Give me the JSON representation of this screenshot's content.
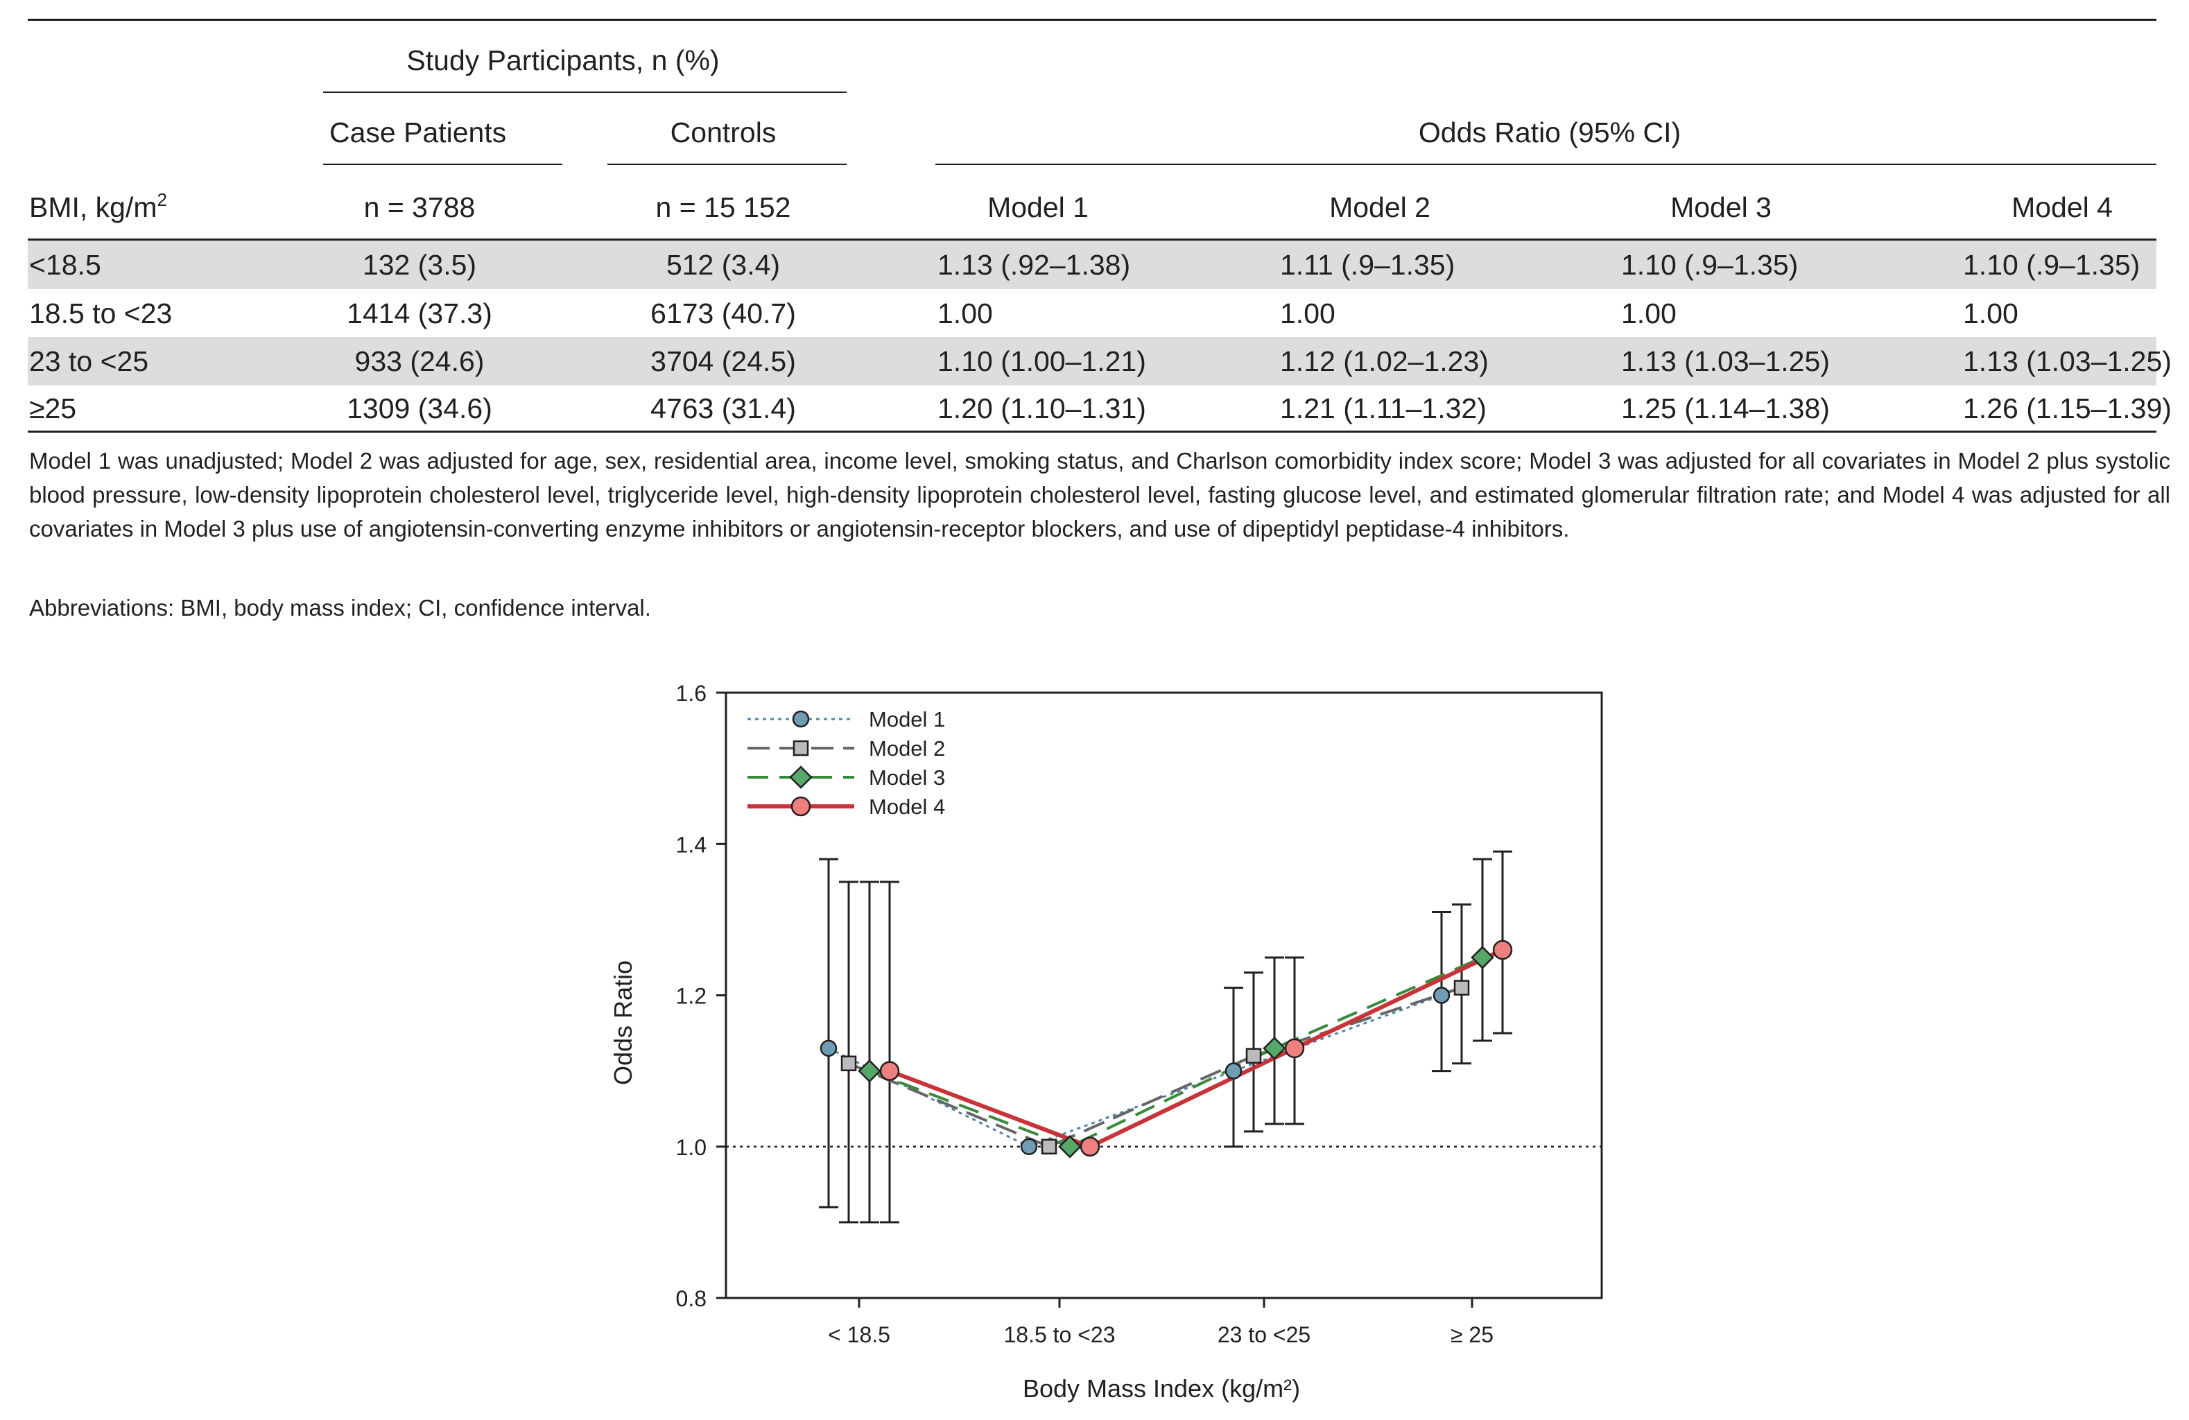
{
  "table": {
    "group_header": "Study Participants, n (%)",
    "or_header": "Odds Ratio (95% CI)",
    "col_case": "Case Patients",
    "col_controls": "Controls",
    "bmi_label": "BMI, kg/m",
    "bmi_sup": "2",
    "n_case": "n = 3788",
    "n_controls": "n = 15 152",
    "models": [
      "Model 1",
      "Model 2",
      "Model 3",
      "Model 4"
    ],
    "rows": [
      {
        "bmi": "<18.5",
        "case": "132 (3.5)",
        "controls": "512 (3.4)",
        "m1": "1.13 (.92–1.38)",
        "m2": "1.11 (.9–1.35)",
        "m3": "1.10 (.9–1.35)",
        "m4": "1.10 (.9–1.35)"
      },
      {
        "bmi": "18.5 to <23",
        "case": "1414 (37.3)",
        "controls": "6173 (40.7)",
        "m1": "1.00",
        "m2": "1.00",
        "m3": "1.00",
        "m4": "1.00"
      },
      {
        "bmi": "23 to <25",
        "case": "933 (24.6)",
        "controls": "3704 (24.5)",
        "m1": "1.10 (1.00–1.21)",
        "m2": "1.12 (1.02–1.23)",
        "m3": "1.13 (1.03–1.25)",
        "m4": "1.13 (1.03–1.25)"
      },
      {
        "bmi": "≥25",
        "case": "1309 (34.6)",
        "controls": "4763 (31.4)",
        "m1": "1.20 (1.10–1.31)",
        "m2": "1.21 (1.11–1.32)",
        "m3": "1.25 (1.14–1.38)",
        "m4": "1.26 (1.15–1.39)"
      }
    ],
    "footnote": "Model 1 was unadjusted; Model 2 was adjusted for age, sex, residential area, income level, smoking status, and Charlson comorbidity index score; Model 3 was adjusted for all covariates in Model 2 plus systolic blood pressure, low-density lipoprotein cholesterol level, triglyceride level, high-density lipoprotein cholesterol level, fasting glucose level, and estimated glomerular filtration rate; and Model 4 was adjusted for all covariates in Model 3 plus use of angiotensin-converting enzyme inhibitors or angiotensin-receptor blockers, and use of dipeptidyl peptidase-4 inhibitors.",
    "abbreviations": "Abbreviations: BMI, body mass index; CI, confidence interval."
  },
  "chart_data": {
    "type": "line",
    "xlabel": "Body Mass Index (kg/m²)",
    "ylabel": "Odds Ratio",
    "categories": [
      "< 18.5",
      "18.5 to <23",
      "23 to <25",
      "≥ 25"
    ],
    "ylim": [
      0.8,
      1.6
    ],
    "yticks": [
      0.8,
      1.0,
      1.2,
      1.4,
      1.6
    ],
    "reference_line": 1.0,
    "legend_position": "top-left",
    "series": [
      {
        "name": "Model 1",
        "color": "#4f86a6",
        "marker": "circle",
        "marker_fill": "#6f9db3",
        "values": [
          1.13,
          1.0,
          1.1,
          1.2
        ],
        "lower": [
          0.92,
          1.0,
          1.0,
          1.1
        ],
        "upper": [
          1.38,
          1.0,
          1.21,
          1.31
        ]
      },
      {
        "name": "Model 2",
        "color": "#666666",
        "marker": "square",
        "marker_fill": "#bbbbbb",
        "values": [
          1.11,
          1.0,
          1.12,
          1.21
        ],
        "lower": [
          0.9,
          1.0,
          1.02,
          1.11
        ],
        "upper": [
          1.35,
          1.0,
          1.23,
          1.32
        ]
      },
      {
        "name": "Model 3",
        "color": "#3a8a3a",
        "marker": "diamond",
        "marker_fill": "#55a868",
        "values": [
          1.1,
          1.0,
          1.13,
          1.25
        ],
        "lower": [
          0.9,
          1.0,
          1.03,
          1.14
        ],
        "upper": [
          1.35,
          1.0,
          1.25,
          1.38
        ]
      },
      {
        "name": "Model 4",
        "color": "#c8333a",
        "marker": "circle",
        "marker_fill": "#ee8080",
        "values": [
          1.1,
          1.0,
          1.13,
          1.26
        ],
        "lower": [
          0.9,
          1.0,
          1.03,
          1.15
        ],
        "upper": [
          1.35,
          1.0,
          1.25,
          1.39
        ]
      }
    ]
  }
}
